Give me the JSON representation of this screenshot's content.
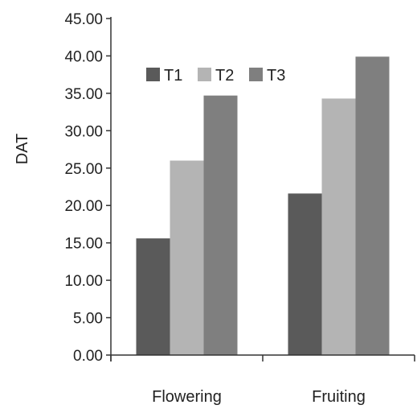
{
  "chart_data": {
    "type": "bar",
    "title": "",
    "xlabel": "",
    "ylabel": "DAT",
    "ylim": [
      0,
      45
    ],
    "yticks": [
      "0.00",
      "5.00",
      "10.00",
      "15.00",
      "20.00",
      "25.00",
      "30.00",
      "35.00",
      "40.00",
      "45.00"
    ],
    "categories": [
      "Flowering",
      "Fruiting"
    ],
    "series": [
      {
        "name": "T1",
        "color": "#5a5a5a",
        "values": [
          15.6,
          21.6
        ]
      },
      {
        "name": "T2",
        "color": "#b4b4b4",
        "values": [
          26.0,
          34.3
        ]
      },
      {
        "name": "T3",
        "color": "#7f7f7f",
        "values": [
          34.7,
          39.9
        ]
      }
    ],
    "grid": false,
    "legend_position": "top-center"
  }
}
